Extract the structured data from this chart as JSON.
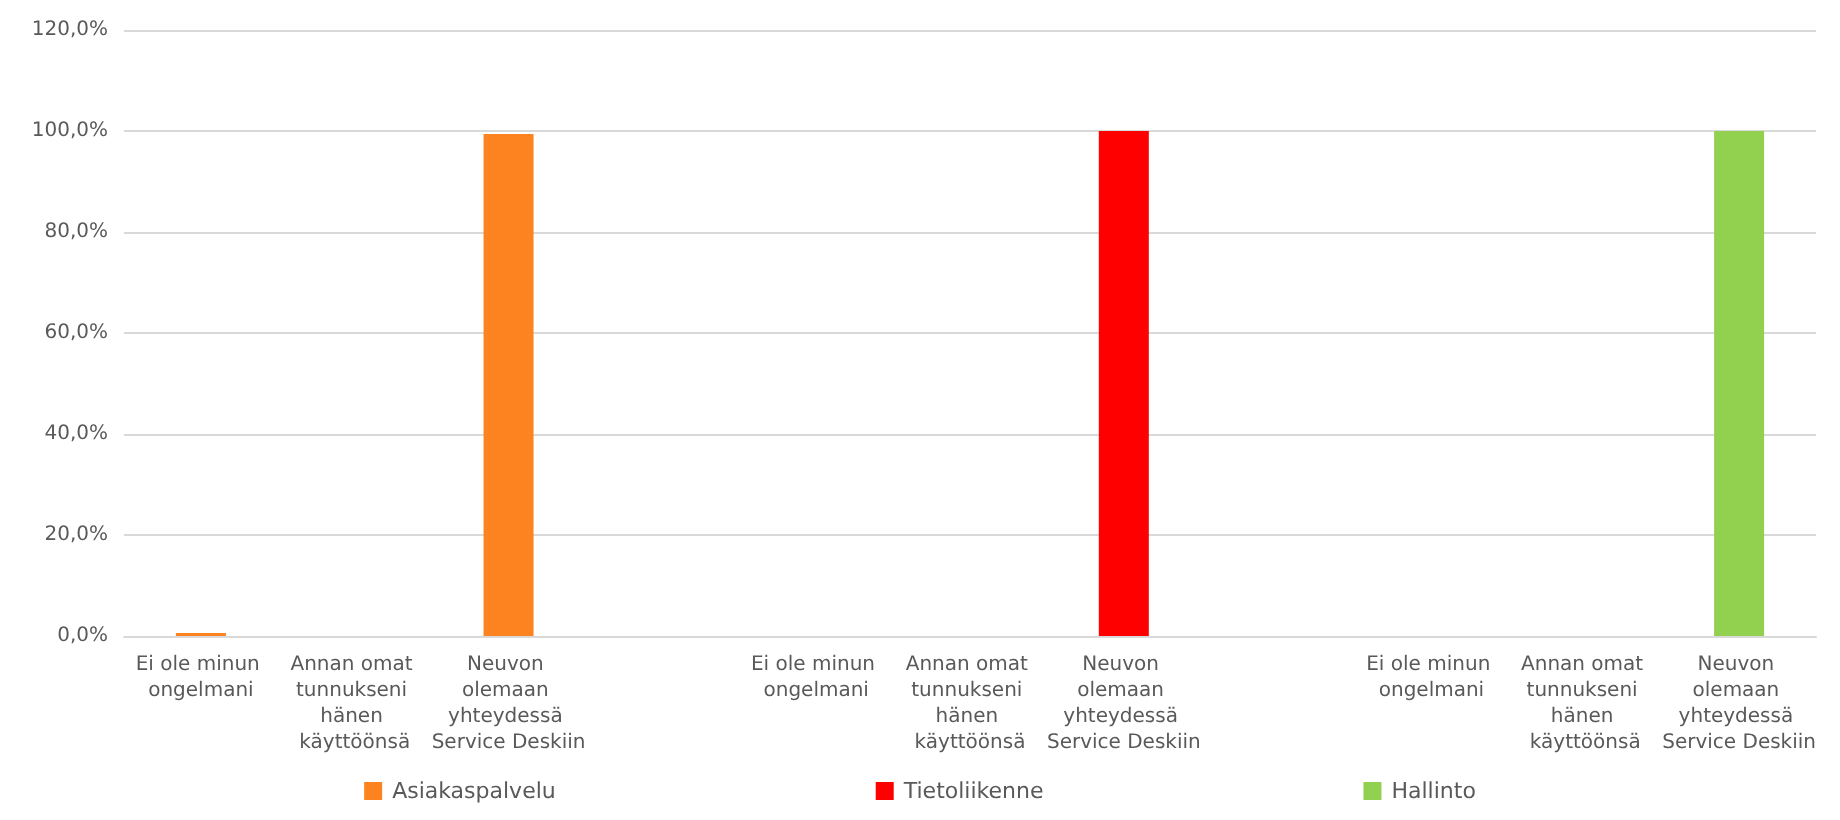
{
  "chart_data": {
    "type": "bar",
    "categories": [
      "Ei ole minun ongelmani",
      "Annan omat tunnukseni hänen käyttöönsä",
      "Neuvon olemaan yhteydessä Service Deskiin",
      null,
      "Ei ole minun ongelmani",
      "Annan omat tunnukseni hänen käyttöönsä",
      "Neuvon olemaan yhteydessä Service Deskiin",
      null,
      "Ei ole minun ongelmani",
      "Annan omat tunnukseni hänen käyttöönsä",
      "Neuvon olemaan yhteydessä Service Deskiin"
    ],
    "series": [
      {
        "name": "Asiakaspalvelu",
        "color": "#fd8320",
        "values": [
          0.6,
          0,
          99.4,
          null,
          null,
          null,
          null,
          null,
          null,
          null,
          null
        ]
      },
      {
        "name": "Tietoliikenne",
        "color": "#ff0000",
        "values": [
          null,
          null,
          null,
          null,
          0,
          0,
          100,
          null,
          null,
          null,
          null
        ]
      },
      {
        "name": "Hallinto",
        "color": "#92d050",
        "values": [
          null,
          null,
          null,
          null,
          null,
          null,
          null,
          null,
          0,
          0,
          100
        ]
      }
    ],
    "ylim": [
      0,
      120
    ],
    "yticks": [
      {
        "value": 0,
        "label": "0,0%"
      },
      {
        "value": 20,
        "label": "20,0%"
      },
      {
        "value": 40,
        "label": "40,0%"
      },
      {
        "value": 60,
        "label": "60,0%"
      },
      {
        "value": 80,
        "label": "80,0%"
      },
      {
        "value": 100,
        "label": "100,0%"
      },
      {
        "value": 120,
        "label": "120,0%"
      }
    ],
    "grid": "y",
    "legend": "bottom"
  }
}
